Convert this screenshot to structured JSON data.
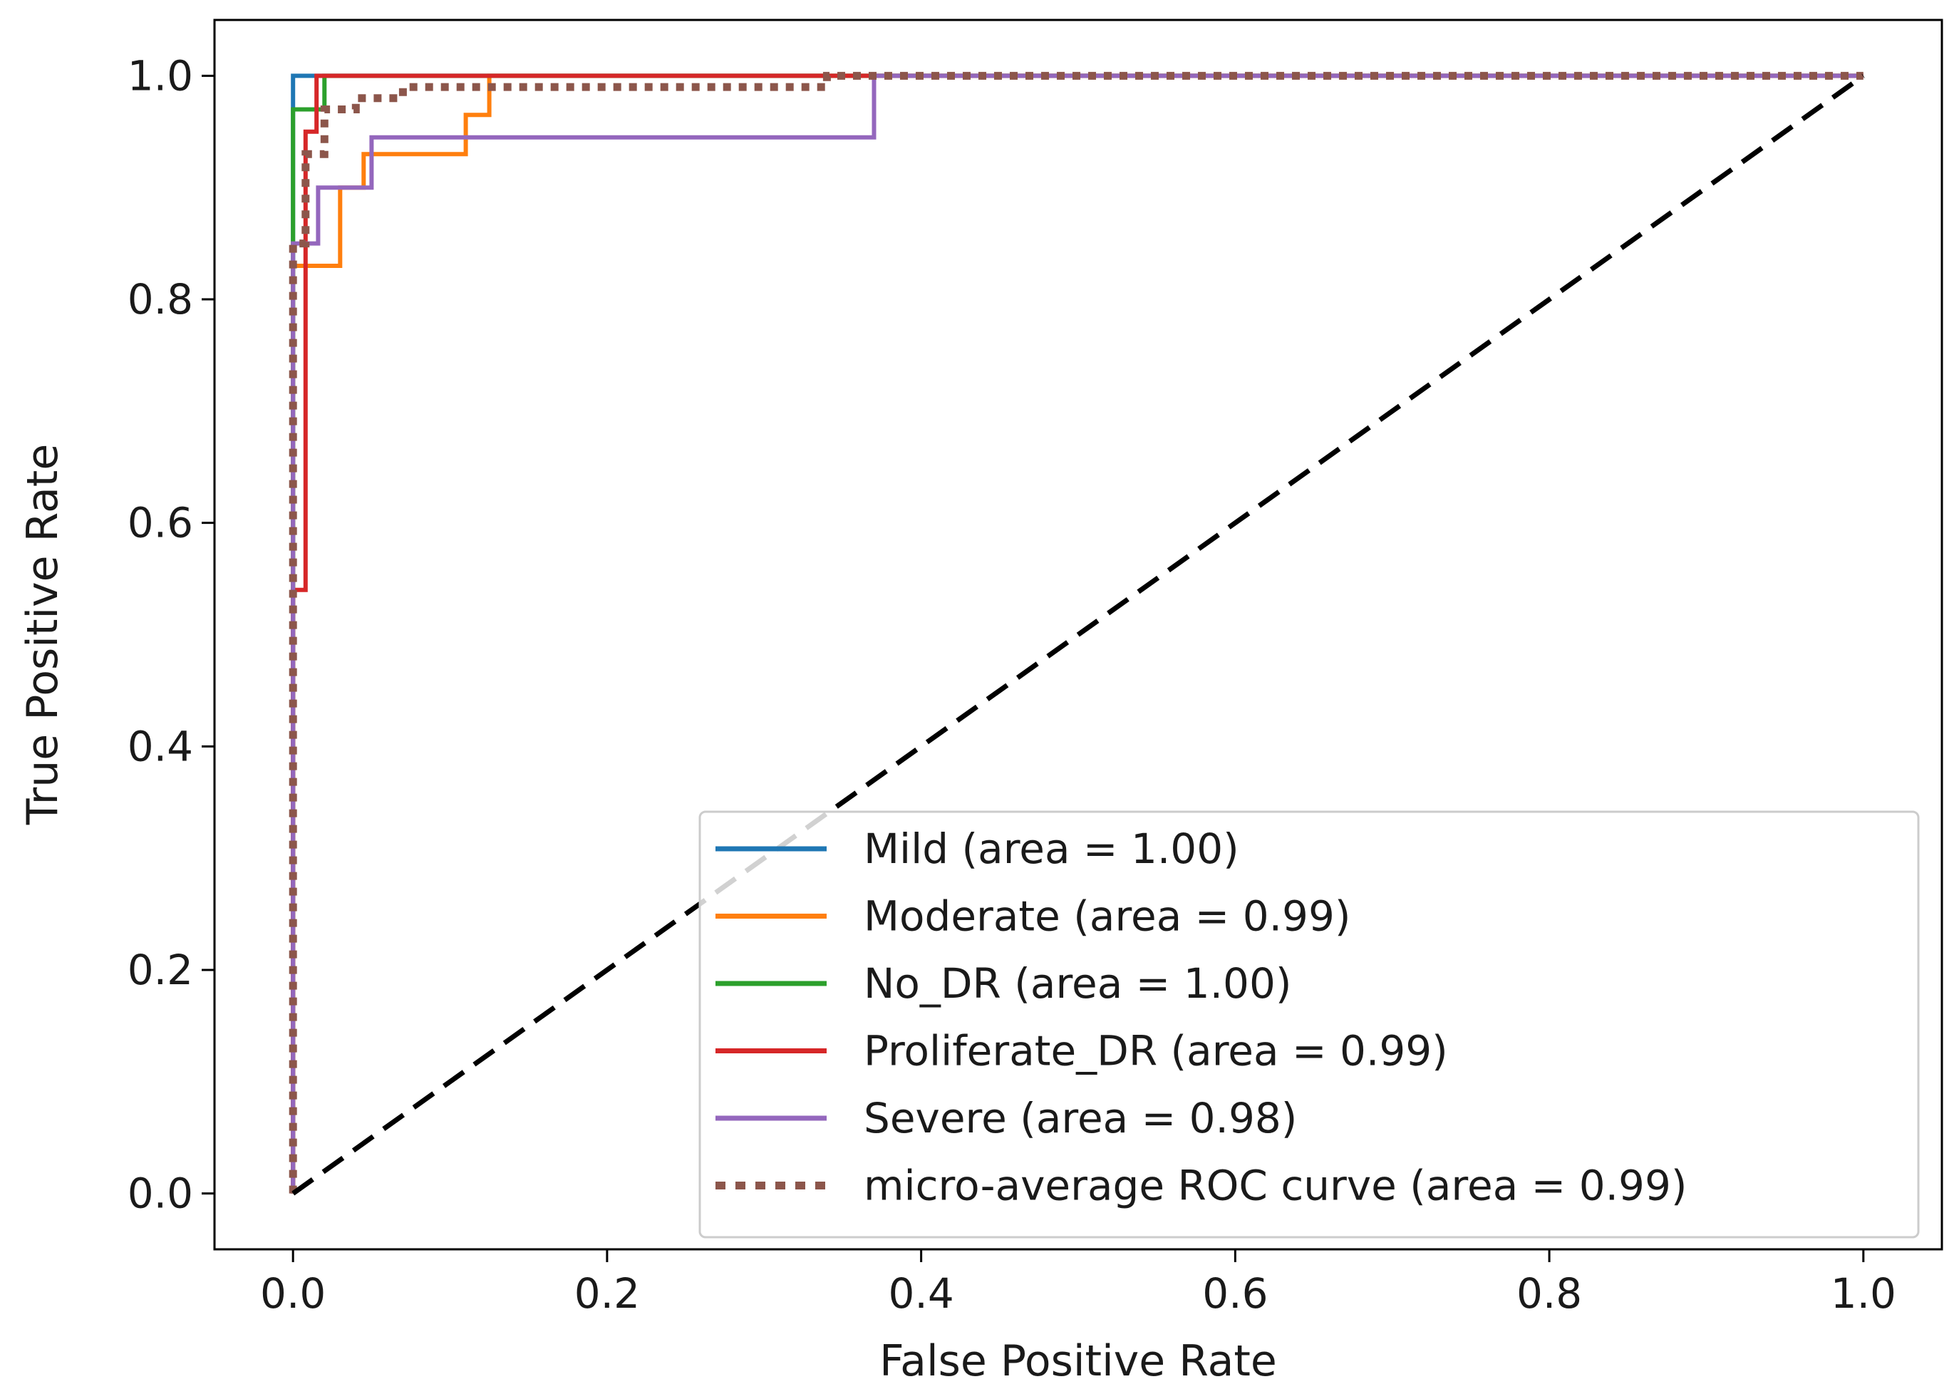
{
  "chart_data": {
    "type": "line",
    "title": "",
    "xlabel": "False Positive Rate",
    "ylabel": "True Positive Rate",
    "xlim": [
      -0.05,
      1.05
    ],
    "ylim": [
      -0.05,
      1.05
    ],
    "xticks": [
      0.0,
      0.2,
      0.4,
      0.6,
      0.8,
      1.0
    ],
    "yticks": [
      0.0,
      0.2,
      0.4,
      0.6,
      0.8,
      1.0
    ],
    "xtick_labels": [
      "0.0",
      "0.2",
      "0.4",
      "0.6",
      "0.8",
      "1.0"
    ],
    "ytick_labels": [
      "0.0",
      "0.2",
      "0.4",
      "0.6",
      "0.8",
      "1.0"
    ],
    "grid": false,
    "legend_position": "bottom-right",
    "series": [
      {
        "name": "Mild",
        "label": "Mild (area = 1.00)",
        "color": "#1f77b4",
        "style": "solid",
        "x": [
          0.0,
          0.0,
          0.0,
          1.0
        ],
        "y": [
          0.0,
          0.85,
          1.0,
          1.0
        ]
      },
      {
        "name": "Moderate",
        "label": "Moderate (area = 0.99)",
        "color": "#ff7f0e",
        "style": "solid",
        "x": [
          0.0,
          0.0,
          0.03,
          0.03,
          0.045,
          0.045,
          0.11,
          0.11,
          0.125,
          0.125,
          1.0
        ],
        "y": [
          0.0,
          0.83,
          0.83,
          0.9,
          0.9,
          0.93,
          0.93,
          0.965,
          0.965,
          1.0,
          1.0
        ]
      },
      {
        "name": "No_DR",
        "label": "No_DR (area = 1.00)",
        "color": "#2ca02c",
        "style": "solid",
        "x": [
          0.0,
          0.0,
          0.02,
          0.02,
          1.0
        ],
        "y": [
          0.0,
          0.97,
          0.97,
          1.0,
          1.0
        ]
      },
      {
        "name": "Proliferate_DR",
        "label": "Proliferate_DR (area = 0.99)",
        "color": "#d62728",
        "style": "solid",
        "x": [
          0.0,
          0.0,
          0.008,
          0.008,
          0.015,
          0.015,
          1.0
        ],
        "y": [
          0.0,
          0.54,
          0.54,
          0.95,
          0.95,
          1.0,
          1.0
        ]
      },
      {
        "name": "Severe",
        "label": "Severe (area = 0.98)",
        "color": "#9467bd",
        "style": "solid",
        "x": [
          0.0,
          0.0,
          0.016,
          0.016,
          0.05,
          0.05,
          0.37,
          0.37,
          1.0
        ],
        "y": [
          0.0,
          0.85,
          0.85,
          0.9,
          0.9,
          0.945,
          0.945,
          1.0,
          1.0
        ]
      },
      {
        "name": "micro-average ROC curve",
        "label": "micro-average ROC curve (area = 0.99)",
        "color": "#8c564b",
        "style": "dotted",
        "x": [
          0.0,
          0.0,
          0.008,
          0.008,
          0.02,
          0.02,
          0.04,
          0.04,
          0.07,
          0.07,
          0.34,
          0.34,
          1.0
        ],
        "y": [
          0.0,
          0.85,
          0.85,
          0.93,
          0.93,
          0.97,
          0.97,
          0.98,
          0.98,
          0.99,
          0.99,
          1.0,
          1.0
        ]
      },
      {
        "name": "chance",
        "label": "",
        "color": "#000000",
        "style": "dashed",
        "x": [
          0.0,
          1.0
        ],
        "y": [
          0.0,
          1.0
        ]
      }
    ]
  }
}
